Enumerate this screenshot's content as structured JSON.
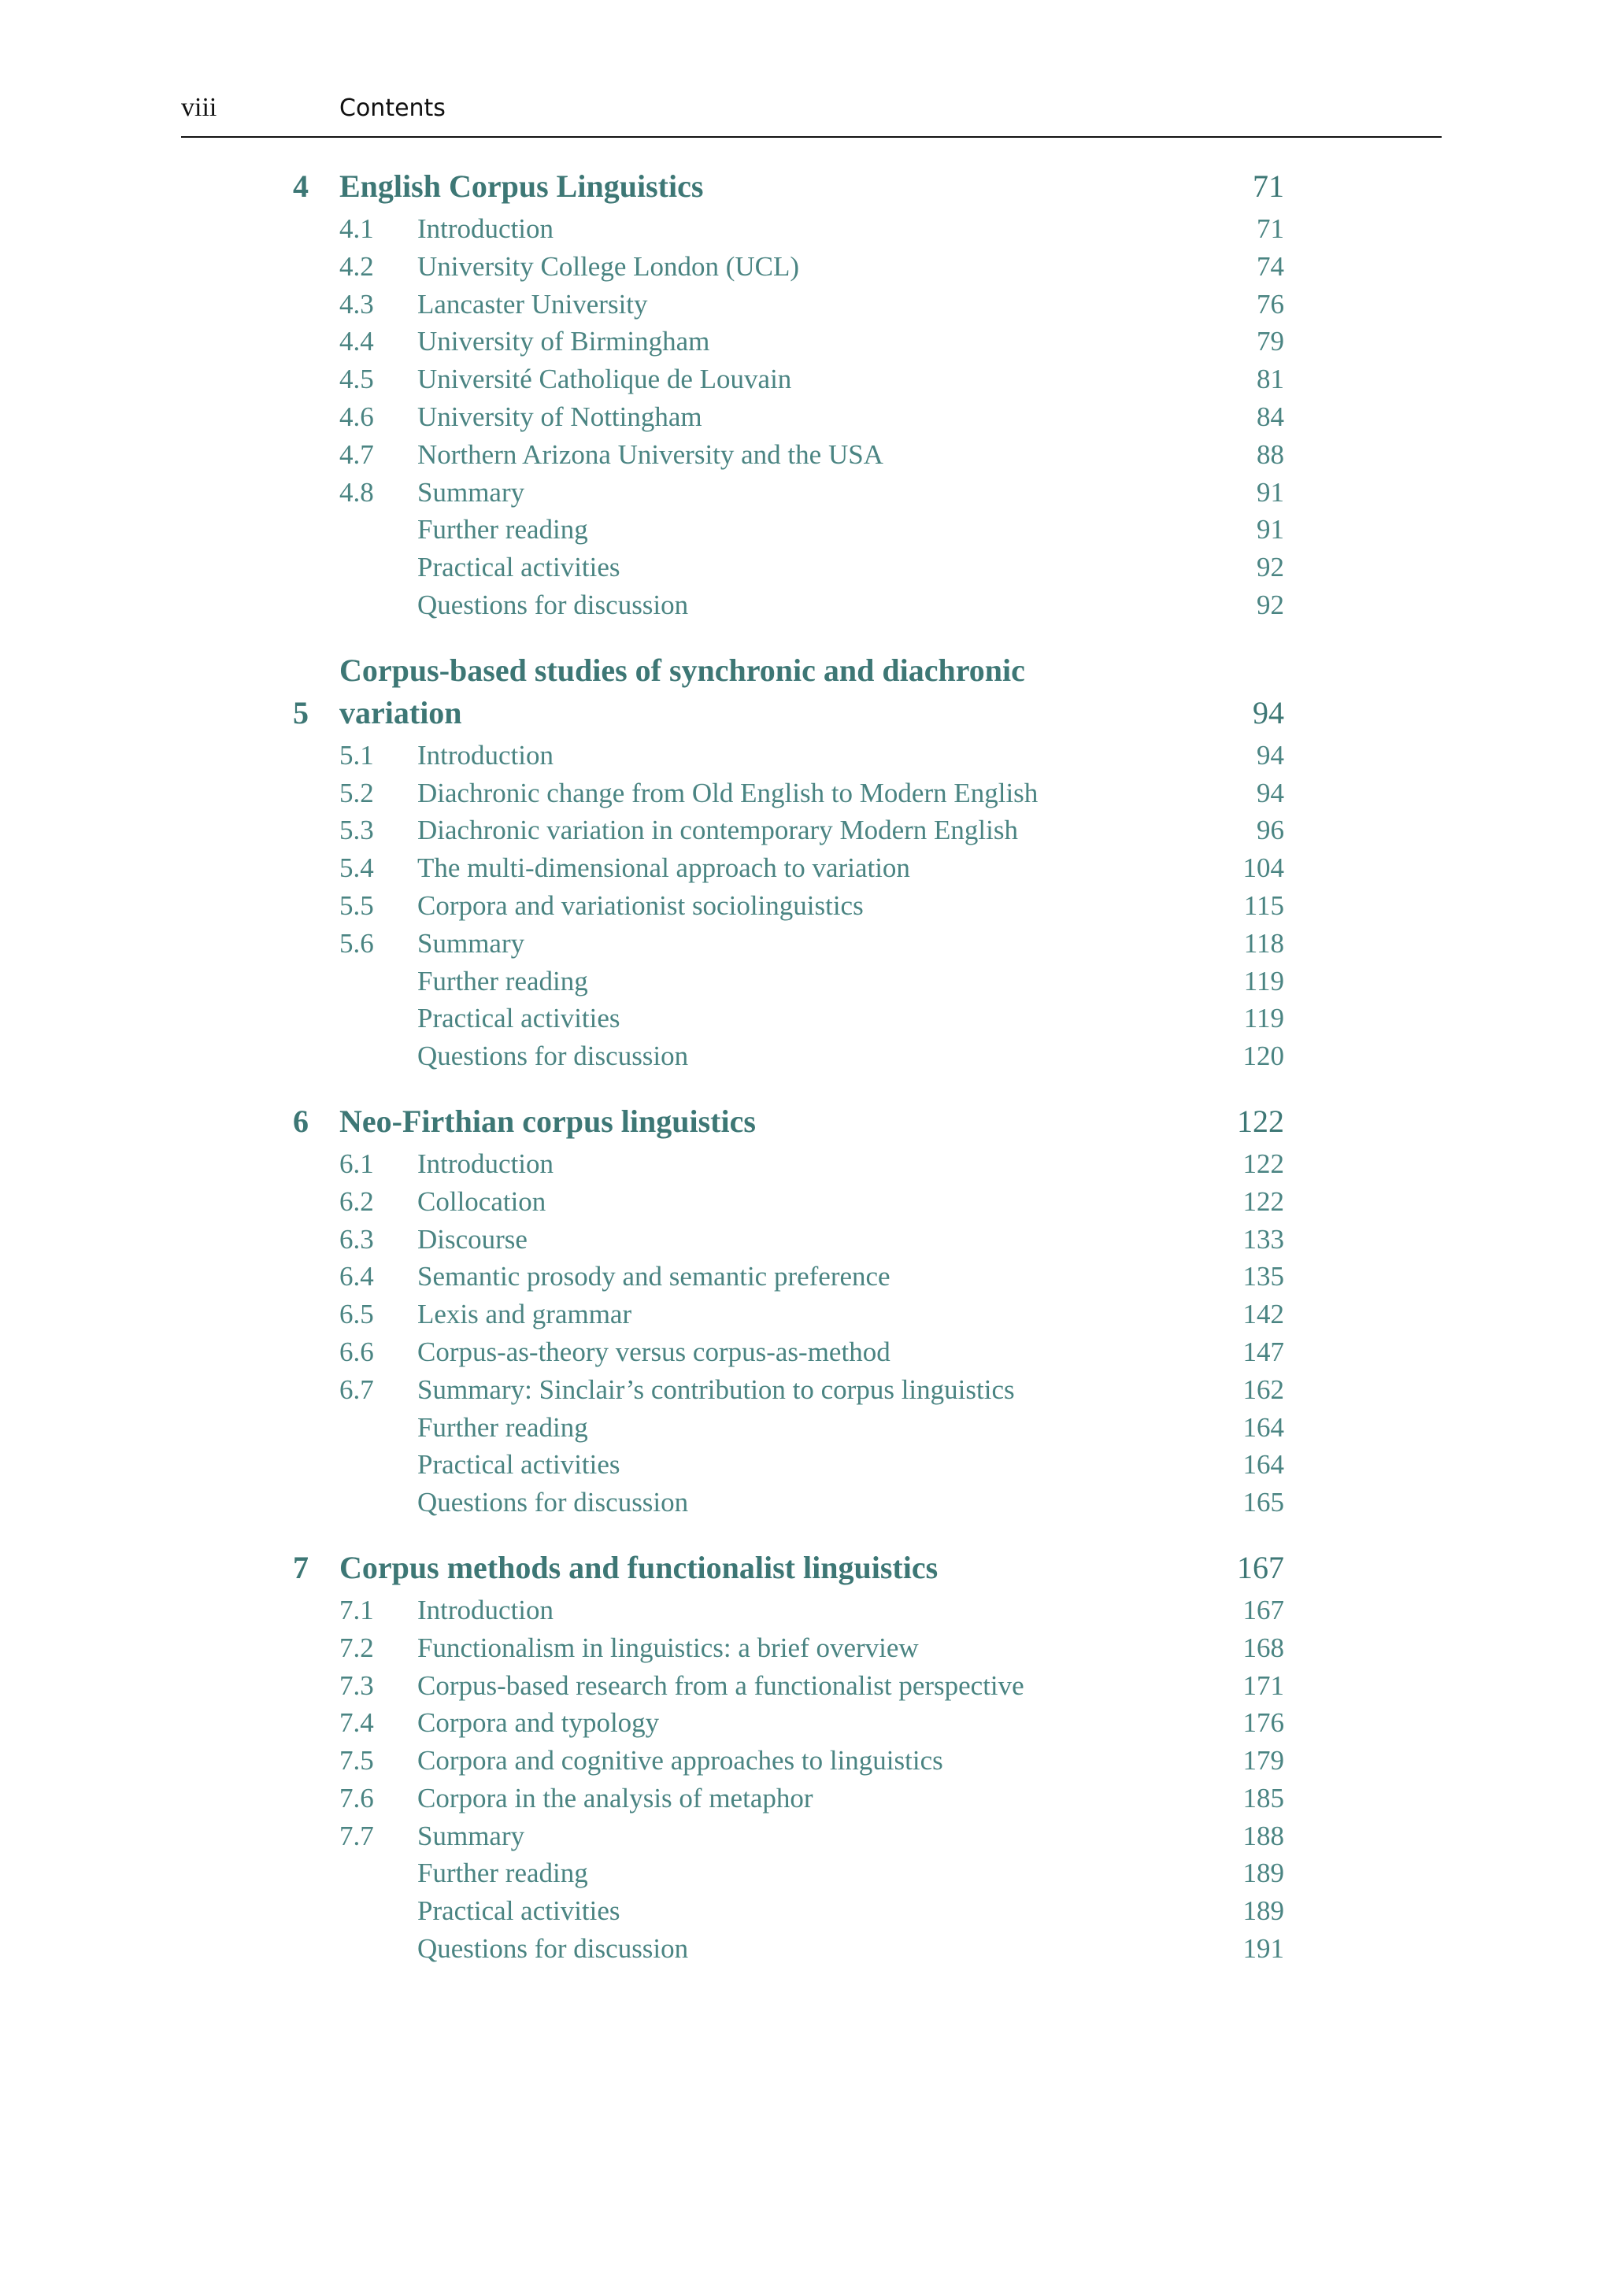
{
  "header": {
    "page": "viii",
    "title": "Contents"
  },
  "chapters": [
    {
      "number": "4",
      "title": "English Corpus Linguistics",
      "page": 71,
      "sections": [
        {
          "number": "4.1",
          "title": "Introduction",
          "page": 71
        },
        {
          "number": "4.2",
          "title": "University College London (UCL)",
          "page": 74
        },
        {
          "number": "4.3",
          "title": "Lancaster University",
          "page": 76
        },
        {
          "number": "4.4",
          "title": "University of Birmingham",
          "page": 79
        },
        {
          "number": "4.5",
          "title": "Université Catholique de Louvain",
          "page": 81
        },
        {
          "number": "4.6",
          "title": "University of Nottingham",
          "page": 84
        },
        {
          "number": "4.7",
          "title": "Northern Arizona University and the USA",
          "page": 88
        },
        {
          "number": "4.8",
          "title": "Summary",
          "page": 91
        },
        {
          "title": "Further reading",
          "page": 91
        },
        {
          "title": "Practical activities",
          "page": 92
        },
        {
          "title": "Questions for discussion",
          "page": 92
        }
      ]
    },
    {
      "number": "5",
      "title": "Corpus-based studies of synchronic and diachronic variation",
      "page": 94,
      "sections": [
        {
          "number": "5.1",
          "title": "Introduction",
          "page": 94
        },
        {
          "number": "5.2",
          "title": "Diachronic change from Old English to Modern English",
          "page": 94
        },
        {
          "number": "5.3",
          "title": "Diachronic variation in contemporary Modern English",
          "page": 96
        },
        {
          "number": "5.4",
          "title": "The multi-dimensional approach to variation",
          "page": 104
        },
        {
          "number": "5.5",
          "title": "Corpora and variationist sociolinguistics",
          "page": 115
        },
        {
          "number": "5.6",
          "title": "Summary",
          "page": 118
        },
        {
          "title": "Further reading",
          "page": 119
        },
        {
          "title": "Practical activities",
          "page": 119
        },
        {
          "title": "Questions for discussion",
          "page": 120
        }
      ]
    },
    {
      "number": "6",
      "title": "Neo-Firthian corpus linguistics",
      "page": 122,
      "sections": [
        {
          "number": "6.1",
          "title": "Introduction",
          "page": 122
        },
        {
          "number": "6.2",
          "title": "Collocation",
          "page": 122
        },
        {
          "number": "6.3",
          "title": "Discourse",
          "page": 133
        },
        {
          "number": "6.4",
          "title": "Semantic prosody and semantic preference",
          "page": 135
        },
        {
          "number": "6.5",
          "title": "Lexis and grammar",
          "page": 142
        },
        {
          "number": "6.6",
          "title": "Corpus-as-theory versus corpus-as-method",
          "page": 147
        },
        {
          "number": "6.7",
          "title": "Summary: Sinclair’s contribution to corpus linguistics",
          "page": 162
        },
        {
          "title": "Further reading",
          "page": 164
        },
        {
          "title": "Practical activities",
          "page": 164
        },
        {
          "title": "Questions for discussion",
          "page": 165
        }
      ]
    },
    {
      "number": "7",
      "title": "Corpus methods and functionalist linguistics",
      "page": 167,
      "sections": [
        {
          "number": "7.1",
          "title": "Introduction",
          "page": 167
        },
        {
          "number": "7.2",
          "title": "Functionalism in linguistics: a brief overview",
          "page": 168
        },
        {
          "number": "7.3",
          "title": "Corpus-based research from a functionalist perspective",
          "page": 171
        },
        {
          "number": "7.4",
          "title": "Corpora and typology",
          "page": 176
        },
        {
          "number": "7.5",
          "title": "Corpora and cognitive approaches to linguistics",
          "page": 179
        },
        {
          "number": "7.6",
          "title": "Corpora in the analysis of metaphor",
          "page": 185
        },
        {
          "number": "7.7",
          "title": "Summary",
          "page": 188
        },
        {
          "title": "Further reading",
          "page": 189
        },
        {
          "title": "Practical activities",
          "page": 189
        },
        {
          "title": "Questions for discussion",
          "page": 191
        }
      ]
    }
  ]
}
